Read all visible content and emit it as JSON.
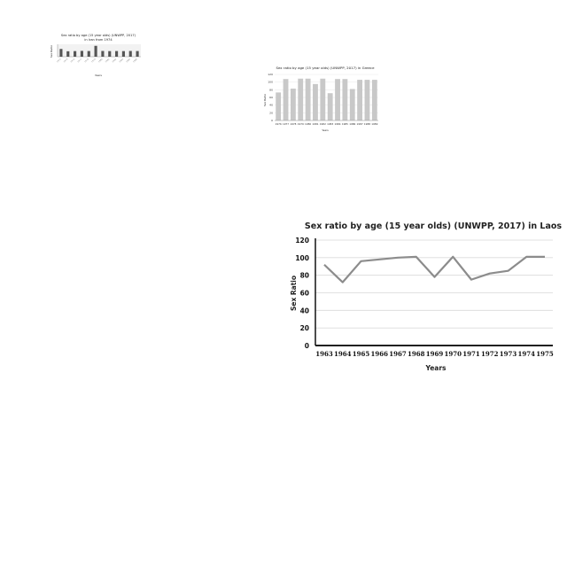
{
  "chart_data": [
    {
      "type": "bar",
      "title_line1": "Sex ratio by age (15 year olds) (UNWPP, 2017)",
      "title_line2": "in Iran from 1974",
      "xlabel": "Years",
      "ylabel": "Sex Ratio",
      "categories": [
        "1974",
        "1975",
        "1976",
        "1977",
        "1978",
        "1979",
        "1980",
        "1981",
        "1982",
        "1983",
        "1984",
        "1985"
      ],
      "values": [
        100,
        70,
        72,
        75,
        73,
        140,
        74,
        72,
        73,
        72,
        74,
        73
      ],
      "ylim": [
        0,
        160
      ],
      "colors": {
        "bar": "#555555"
      }
    },
    {
      "type": "bar",
      "title": "Sex ratio by age (15 year olds) (UNWPP, 2017) in Greece",
      "xlabel": "Years",
      "ylabel": "Sex Ratio",
      "categories": [
        "1976",
        "1977",
        "1978",
        "1979",
        "1980",
        "1981",
        "1982",
        "1983",
        "1984",
        "1985",
        "1986",
        "1987",
        "1988",
        "1989"
      ],
      "values": [
        73,
        108,
        83,
        109,
        109,
        95,
        109,
        71,
        108,
        108,
        82,
        106,
        106,
        106
      ],
      "yticks": [
        0,
        20,
        40,
        60,
        80,
        100,
        120
      ],
      "ylim": [
        0,
        120
      ],
      "grid": true,
      "colors": {
        "bar": "#c8c8c8"
      }
    },
    {
      "type": "line",
      "title": "Sex ratio by age (15 year olds) (UNWPP, 2017) in Laos",
      "xlabel": "Years",
      "ylabel": "Sex Ratio",
      "categories": [
        "1963",
        "1964",
        "1965",
        "1966",
        "1967",
        "1968",
        "1969",
        "1970",
        "1971",
        "1972",
        "1973",
        "1974",
        "1975"
      ],
      "values": [
        92,
        72,
        96,
        98,
        100,
        101,
        78,
        101,
        75,
        82,
        85,
        101,
        101
      ],
      "yticks": [
        0,
        20,
        40,
        60,
        80,
        100,
        120
      ],
      "ylim": [
        0,
        120
      ],
      "grid": true,
      "colors": {
        "line": "#8c8c8c",
        "grid": "#d9d9d9",
        "axis": "#000000"
      }
    }
  ]
}
